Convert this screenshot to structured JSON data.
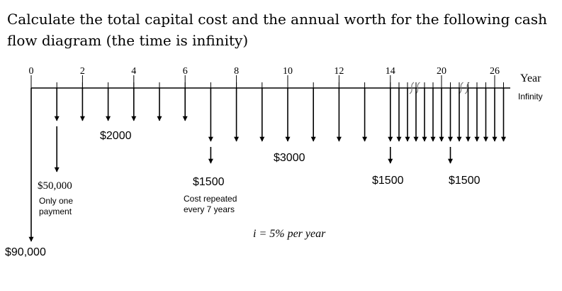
{
  "question": {
    "line1": "Calculate the total capital cost and the annual worth for the following cash",
    "line2": "flow diagram (the time is infinity)"
  },
  "diagram": {
    "year_ticks": [
      {
        "year": 0,
        "label": "0"
      },
      {
        "year": 2,
        "label": "2"
      },
      {
        "year": 4,
        "label": "4"
      },
      {
        "year": 6,
        "label": "6"
      },
      {
        "year": 8,
        "label": "8"
      },
      {
        "year": 10,
        "label": "10"
      },
      {
        "year": 12,
        "label": "12"
      },
      {
        "year": 14,
        "label": "14"
      },
      {
        "year": 20,
        "label": "20"
      },
      {
        "year": 26,
        "label": "26"
      }
    ],
    "axis_label": "Year",
    "axis_sublabel": "Infinity",
    "interest_rate": "i = 5% per year",
    "flows": {
      "initial": {
        "year": 0,
        "amount": "$90,000"
      },
      "one_time": {
        "year": 1,
        "amount": "$50,000",
        "note_line1": "Only one",
        "note_line2": "payment"
      },
      "annual_2000": {
        "years": [
          1,
          2,
          3,
          4,
          5,
          6
        ],
        "amount": "$2000"
      },
      "annual_3000": {
        "years": [
          7,
          8,
          9,
          10,
          11,
          12,
          13,
          14,
          15,
          16,
          17,
          18,
          19,
          20,
          21,
          22,
          23,
          24,
          25,
          26,
          27
        ],
        "amount": "$3000"
      },
      "periodic_1500": {
        "years": [
          7,
          14,
          21
        ],
        "amount": "$1500",
        "note_line1": "Cost repeated",
        "note_line2": "every 7 years"
      }
    }
  }
}
